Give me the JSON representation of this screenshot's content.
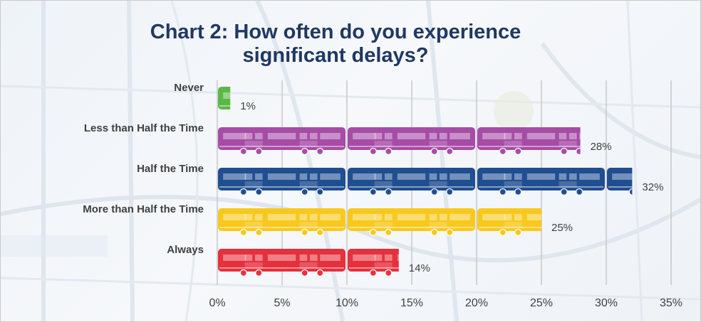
{
  "chart_data": {
    "type": "bar",
    "orientation": "horizontal",
    "title": "Chart 2: How often do you experience significant delays?",
    "categories": [
      "Never",
      "Less than Half the Time",
      "Half the Time",
      "More than Half the Time",
      "Always"
    ],
    "values": [
      1,
      28,
      32,
      25,
      14
    ],
    "value_labels": [
      "1%",
      "28%",
      "32%",
      "25%",
      "14%"
    ],
    "colors": [
      "#5cb846",
      "#a64ca6",
      "#1f4e91",
      "#f8c91c",
      "#e5303d"
    ],
    "xlim": [
      0,
      35
    ],
    "xticks": [
      0,
      5,
      10,
      15,
      20,
      25,
      30,
      35
    ],
    "xtick_labels": [
      "0%",
      "5%",
      "10%",
      "15%",
      "20%",
      "25%",
      "30%",
      "35%"
    ],
    "grid": true,
    "bar_style": "subway-car pictograph"
  }
}
